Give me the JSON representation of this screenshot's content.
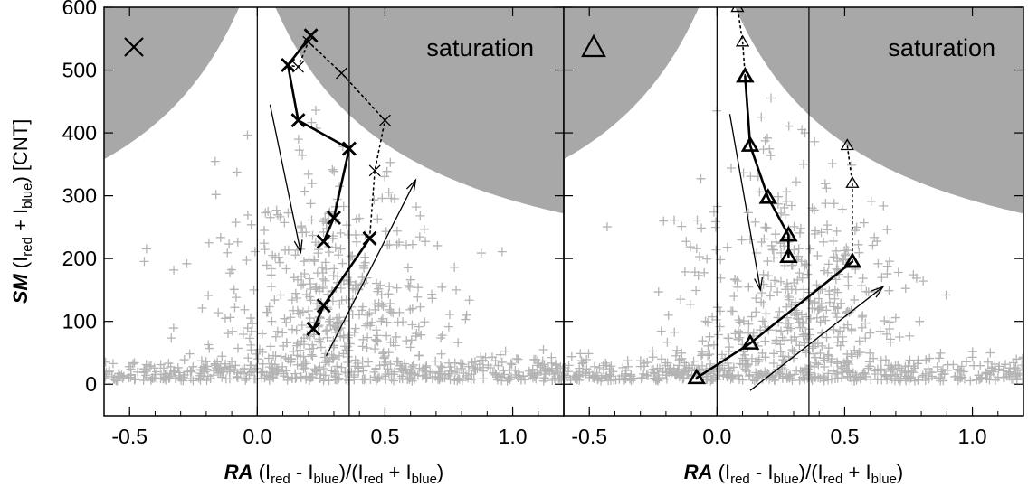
{
  "chart_data": [
    {
      "type": "scatter",
      "panel": "left",
      "marker": "x",
      "xlabel": {
        "bold": "RA",
        "text": " (I_red - I_blue)/(I_red + I_blue)"
      },
      "ylabel": {
        "bold": "SM",
        "text": " (I_red + I_blue) [CNT]"
      },
      "xlim": [
        -0.6,
        1.2
      ],
      "ylim": [
        -50,
        600
      ],
      "x_ticks": [
        -0.5,
        0.0,
        0.5,
        1.0
      ],
      "x_tick_labels": [
        "-0.5",
        "0.0",
        "0.5",
        "1.0"
      ],
      "y_ticks": [
        0,
        100,
        200,
        300,
        400,
        500,
        600
      ],
      "y_tick_labels": [
        "0",
        "100",
        "200",
        "300",
        "400",
        "500",
        "600"
      ],
      "vertical_lines": [
        0.0,
        0.36
      ],
      "annotation": "saturation",
      "saturation_color": "#a8a8a8",
      "background_points_color": "#b4b4b4",
      "series": [
        {
          "style": "solid-thick",
          "x": [
            0.22,
            0.26,
            0.44
          ],
          "y": [
            88,
            125,
            232
          ]
        },
        {
          "style": "solid-thick",
          "x": [
            0.26,
            0.3,
            0.36,
            0.16,
            0.12,
            0.21
          ],
          "y": [
            227,
            265,
            375,
            420,
            508,
            555
          ]
        },
        {
          "style": "dotted",
          "x": [
            0.44,
            0.46,
            0.5,
            0.33,
            0.2,
            0.16,
            0.12
          ],
          "y": [
            232,
            340,
            420,
            495,
            545,
            505,
            508
          ]
        }
      ],
      "arrows": [
        {
          "from": [
            0.05,
            445
          ],
          "to": [
            0.17,
            210
          ]
        },
        {
          "from": [
            0.27,
            45
          ],
          "to": [
            0.62,
            325
          ]
        }
      ]
    },
    {
      "type": "scatter",
      "panel": "right",
      "marker": "triangle",
      "xlabel": {
        "bold": "RA",
        "text": " (I_red - I_blue)/(I_red + I_blue)"
      },
      "xlim": [
        -0.6,
        1.2
      ],
      "ylim": [
        -50,
        600
      ],
      "x_ticks": [
        -0.5,
        0.0,
        0.5,
        1.0
      ],
      "x_tick_labels": [
        "-0.5",
        "0.0",
        "0.5",
        "1.0"
      ],
      "vertical_lines": [
        0.0,
        0.36
      ],
      "annotation": "saturation",
      "saturation_color": "#a8a8a8",
      "background_points_color": "#b4b4b4",
      "series": [
        {
          "style": "solid-thick",
          "x": [
            -0.08,
            0.13,
            0.53
          ],
          "y": [
            10,
            65,
            195
          ]
        },
        {
          "style": "solid-thick",
          "x": [
            0.28,
            0.28,
            0.2,
            0.13,
            0.11
          ],
          "y": [
            203,
            237,
            297,
            380,
            490
          ]
        },
        {
          "style": "dotted",
          "x": [
            0.53,
            0.53,
            0.51
          ],
          "y": [
            195,
            320,
            380
          ]
        },
        {
          "style": "dotted",
          "x": [
            0.11,
            0.1,
            0.08
          ],
          "y": [
            490,
            545,
            600
          ]
        }
      ],
      "arrows": [
        {
          "from": [
            0.05,
            430
          ],
          "to": [
            0.17,
            150
          ]
        },
        {
          "from": [
            0.13,
            -10
          ],
          "to": [
            0.65,
            155
          ]
        }
      ]
    }
  ]
}
